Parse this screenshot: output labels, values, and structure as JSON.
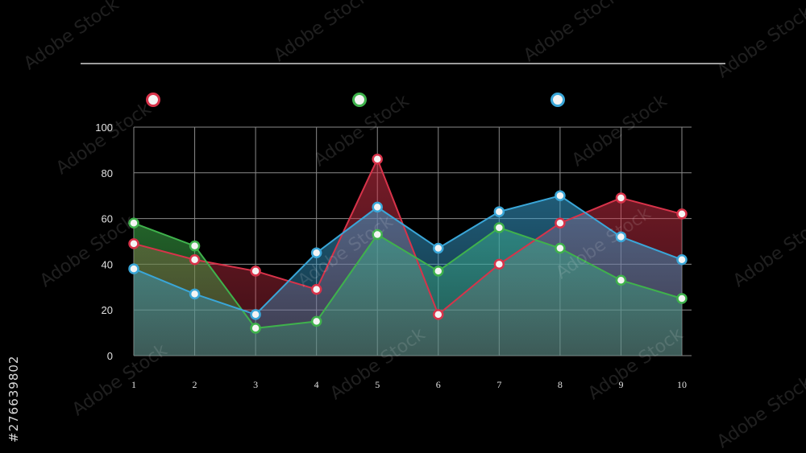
{
  "watermark": {
    "id_text": "#276639802",
    "brand_text": "Adobe Stock"
  },
  "colors": {
    "background": "#000000",
    "grid": "#8a8a8a",
    "axis_text": "#e0e0e0",
    "series": [
      "#d8334a",
      "#3fb24c",
      "#3aa6d8"
    ]
  },
  "chart_data": {
    "type": "area",
    "title": "",
    "xlabel": "",
    "ylabel": "",
    "x": [
      1,
      2,
      3,
      4,
      5,
      6,
      7,
      8,
      9,
      10
    ],
    "ylim": [
      0,
      100
    ],
    "yticks": [
      0,
      20,
      40,
      60,
      80,
      100
    ],
    "grid": true,
    "legend": "top",
    "series": [
      {
        "values": [
          49,
          42,
          37,
          29,
          86,
          18,
          40,
          58,
          69,
          62
        ]
      },
      {
        "values": [
          58,
          48,
          12,
          15,
          53,
          37,
          56,
          47,
          33,
          25
        ]
      },
      {
        "values": [
          38,
          27,
          18,
          45,
          65,
          47,
          63,
          70,
          52,
          42
        ]
      }
    ]
  }
}
